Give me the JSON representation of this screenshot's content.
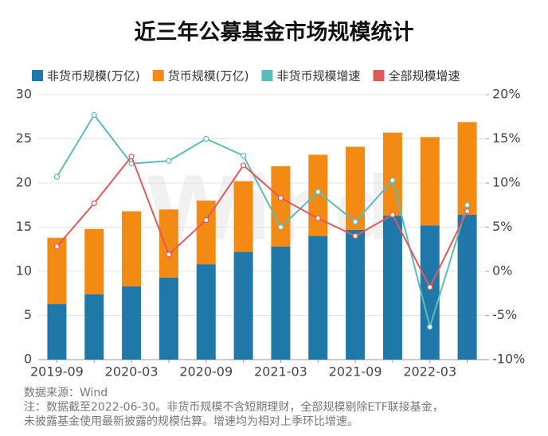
{
  "chart_data": {
    "type": "bar",
    "title": "近三年公募基金市场规模统计",
    "categories": [
      "2019-09",
      null,
      "2020-03",
      null,
      "2020-09",
      null,
      "2021-03",
      null,
      "2021-09",
      null,
      "2022-03",
      null
    ],
    "series": [
      {
        "name": "非货币规模(万亿)",
        "type": "bar",
        "color": "#1f78a8",
        "values": [
          6.3,
          7.4,
          8.3,
          9.3,
          10.8,
          12.2,
          12.8,
          14.0,
          14.7,
          16.3,
          15.2,
          16.4
        ]
      },
      {
        "name": "货币规模(万亿)",
        "type": "bar",
        "color": "#f28a14",
        "values": [
          7.5,
          7.4,
          8.5,
          7.7,
          7.2,
          8.0,
          9.1,
          9.2,
          9.4,
          9.4,
          10.0,
          10.5
        ]
      },
      {
        "name": "非货币规模增速",
        "type": "line",
        "axis": "y2",
        "color": "#5cbcbc",
        "values": [
          10.7,
          17.7,
          12.2,
          12.5,
          15.0,
          13.1,
          5.0,
          9.0,
          5.6,
          10.3,
          -6.3,
          7.5
        ]
      },
      {
        "name": "全部规模增速",
        "type": "line",
        "axis": "y2",
        "color": "#e05a5a",
        "values": [
          2.8,
          7.7,
          13.0,
          1.9,
          5.8,
          12.0,
          8.3,
          6.0,
          4.0,
          6.4,
          -1.8,
          6.8
        ]
      }
    ],
    "ylim": [
      0,
      30
    ],
    "yticks": [
      0,
      5,
      10,
      15,
      20,
      25,
      30
    ],
    "y2lim": [
      -10,
      20
    ],
    "y2ticks": [
      {
        "value": -10,
        "label": "-10%"
      },
      {
        "value": -5,
        "label": "-5%"
      },
      {
        "value": 0,
        "label": "0%"
      },
      {
        "value": 5,
        "label": "5%"
      },
      {
        "value": 10,
        "label": "10%"
      },
      {
        "value": 15,
        "label": "15%"
      },
      {
        "value": 20,
        "label": "20%"
      }
    ],
    "grid": true,
    "legend": "top",
    "watermark": "Wind",
    "source": "数据来源：Wind",
    "notes": [
      "注：数据截至2022-06-30。非货币规模不含短期理财，全部规模剔除ETF联接基金，",
      "未披露基金使用最新披露的规模估算。增速均为相对上季环比增速。"
    ]
  }
}
